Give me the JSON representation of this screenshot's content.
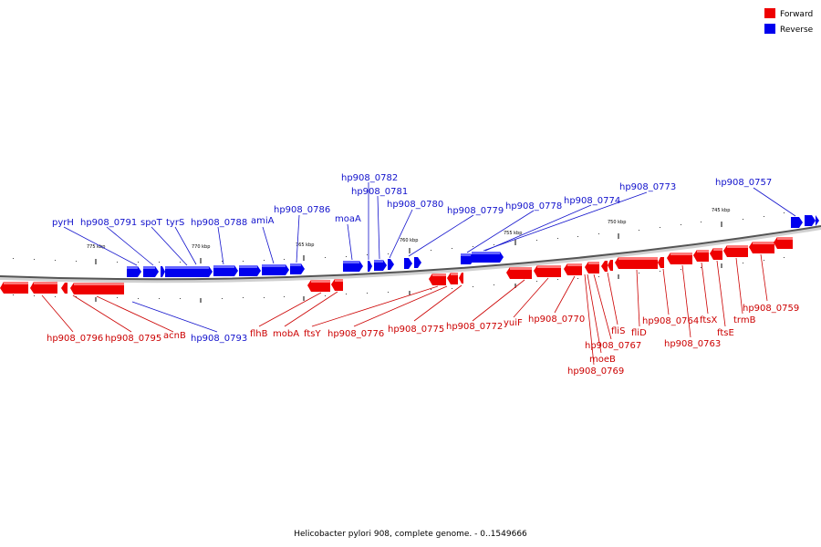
{
  "legend": {
    "forward_label": "Forward",
    "reverse_label": "Reverse",
    "forward_color": "#ee0000",
    "reverse_color": "#0000ee"
  },
  "caption": "Helicobacter pylori 908, complete genome. - 0..1549666",
  "ticks": [
    {
      "label": "775 kbp"
    },
    {
      "label": "770 kbp"
    },
    {
      "label": "765 kbp"
    },
    {
      "label": "760 kbp"
    },
    {
      "label": "755 kbp"
    },
    {
      "label": "750 kbp"
    },
    {
      "label": "745 kbp"
    }
  ],
  "forward_labels": [
    "hp908_0796",
    "hp908_0795",
    "acnB",
    "flhB",
    "mobA",
    "ftsY",
    "hp908_0776",
    "hp908_0775",
    "hp908_0772",
    "yuiF",
    "hp908_0770",
    "hp908_0767",
    "moeB",
    "hp908_0769",
    "fliS",
    "fliD",
    "hp908_0764",
    "hp908_0763",
    "ftsX",
    "ftsE",
    "trmB",
    "hp908_0759"
  ],
  "reverse_labels": [
    "pyrH",
    "hp908_0791",
    "spoT",
    "tyrS",
    "hp908_0788",
    "amiA",
    "hp908_0786",
    "moaA",
    "hp908_0782",
    "hp908_0781",
    "hp908_0780",
    "hp908_0779",
    "hp908_0778",
    "hp908_0774",
    "hp908_0773",
    "hp908_0757",
    "hp908_0793"
  ]
}
